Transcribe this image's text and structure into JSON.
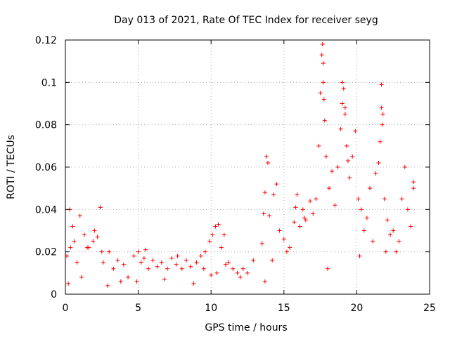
{
  "chart_data": {
    "type": "scatter",
    "title": "Day 013 of 2021, Rate Of TEC Index for receiver seyg",
    "xlabel": "GPS time / hours",
    "ylabel": "ROTI / TECUs",
    "xlim": [
      0,
      25
    ],
    "ylim": [
      0,
      0.12
    ],
    "xticks": [
      "0",
      "5",
      "10",
      "15",
      "20",
      "25"
    ],
    "yticks": [
      "0",
      "0.02",
      "0.04",
      "0.06",
      "0.08",
      "0.1",
      "0.12"
    ],
    "grid": true,
    "marker": "+",
    "color": "#ff0000",
    "series": [
      {
        "name": "ROTI",
        "x": [
          0.1,
          0.3,
          0.35,
          0.5,
          0.8,
          1.0,
          1.3,
          1.6,
          1.9,
          2.0,
          2.2,
          2.4,
          2.6,
          3.0,
          3.3,
          3.6,
          4.0,
          4.3,
          4.7,
          5.0,
          5.2,
          5.4,
          5.7,
          6.0,
          6.3,
          6.6,
          7.0,
          7.3,
          7.6,
          8.0,
          8.3,
          8.6,
          9.0,
          9.3,
          9.6,
          9.9,
          10.1,
          10.3,
          10.5,
          10.7,
          10.9,
          11.2,
          11.5,
          11.8,
          12.0,
          12.2,
          12.5,
          13.5,
          13.6,
          13.7,
          13.8,
          13.9,
          14.0,
          14.3,
          14.5,
          14.7,
          15.0,
          15.2,
          15.4,
          15.7,
          15.9,
          16.1,
          16.3,
          16.5,
          16.8,
          17.0,
          17.2,
          17.4,
          17.5,
          17.6,
          17.7,
          17.8,
          17.9,
          18.1,
          18.3,
          18.5,
          18.7,
          18.9,
          19.0,
          19.1,
          19.2,
          19.3,
          19.4,
          19.5,
          19.7,
          19.9,
          20.1,
          20.3,
          20.5,
          20.7,
          20.9,
          21.1,
          21.3,
          21.5,
          21.6,
          21.7,
          21.8,
          21.9,
          22.1,
          22.3,
          22.5,
          22.7,
          22.9,
          23.1,
          23.3,
          23.5,
          23.7,
          23.9,
          0.2,
          1.1,
          2.9,
          4.9,
          6.8,
          8.8,
          10.0,
          10.4,
          13.7,
          17.65,
          17.7,
          17.75,
          19.0,
          19.2,
          21.7,
          21.75,
          23.9,
          15.8,
          16.4,
          12.9,
          3.8,
          9.5,
          22.0,
          20.2,
          18.0,
          14.2,
          11.0,
          7.7,
          5.5,
          2.5,
          0.6,
          1.5
        ],
        "y": [
          0.018,
          0.04,
          0.022,
          0.032,
          0.015,
          0.037,
          0.028,
          0.022,
          0.025,
          0.03,
          0.027,
          0.041,
          0.015,
          0.02,
          0.012,
          0.016,
          0.014,
          0.008,
          0.018,
          0.02,
          0.015,
          0.017,
          0.012,
          0.016,
          0.013,
          0.015,
          0.012,
          0.017,
          0.014,
          0.012,
          0.016,
          0.013,
          0.015,
          0.018,
          0.02,
          0.025,
          0.028,
          0.032,
          0.033,
          0.022,
          0.028,
          0.015,
          0.012,
          0.01,
          0.008,
          0.012,
          0.01,
          0.024,
          0.038,
          0.048,
          0.065,
          0.062,
          0.037,
          0.047,
          0.052,
          0.03,
          0.026,
          0.02,
          0.022,
          0.034,
          0.047,
          0.032,
          0.04,
          0.035,
          0.044,
          0.038,
          0.045,
          0.07,
          0.095,
          0.113,
          0.1,
          0.082,
          0.065,
          0.05,
          0.058,
          0.042,
          0.06,
          0.078,
          0.1,
          0.097,
          0.085,
          0.07,
          0.063,
          0.055,
          0.065,
          0.077,
          0.045,
          0.04,
          0.03,
          0.036,
          0.05,
          0.025,
          0.057,
          0.062,
          0.072,
          0.099,
          0.085,
          0.045,
          0.035,
          0.028,
          0.03,
          0.02,
          0.025,
          0.045,
          0.06,
          0.04,
          0.032,
          0.05,
          0.005,
          0.008,
          0.004,
          0.006,
          0.007,
          0.005,
          0.009,
          0.01,
          0.006,
          0.118,
          0.109,
          0.092,
          0.09,
          0.088,
          0.088,
          0.08,
          0.053,
          0.041,
          0.036,
          0.016,
          0.006,
          0.012,
          0.02,
          0.018,
          0.012,
          0.016,
          0.014,
          0.018,
          0.021,
          0.02,
          0.025,
          0.022
        ]
      }
    ]
  }
}
